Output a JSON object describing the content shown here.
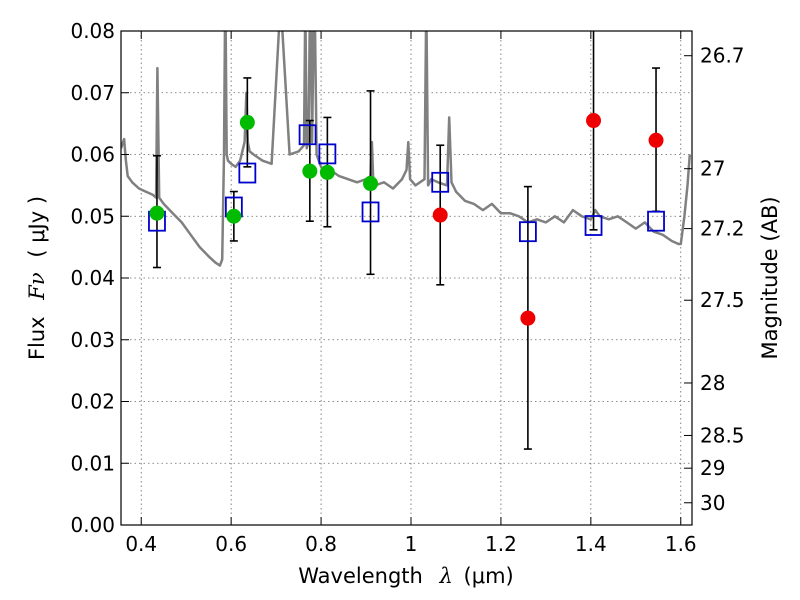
{
  "chart_data": {
    "type": "scatter",
    "title": "",
    "xlabel_text": "Wavelength",
    "xlabel_symbol": "λ",
    "xlabel_unit": "(μm)",
    "ylabel_text": "Flux",
    "ylabel_symbol": "Fν",
    "ylabel_unit": "( μJy )",
    "y2label": "Magnitude (AB)",
    "xlim": [
      0.355,
      1.625
    ],
    "ylim": [
      0.0,
      0.08
    ],
    "grid": true,
    "x_ticks": [
      0.4,
      0.6,
      0.8,
      1.0,
      1.2,
      1.4,
      1.6
    ],
    "x_tick_labels": [
      "0.4",
      "0.6",
      "0.8",
      "1",
      "1.2",
      "1.4",
      "1.6"
    ],
    "y_ticks": [
      0.0,
      0.01,
      0.02,
      0.03,
      0.04,
      0.05,
      0.06,
      0.07,
      0.08
    ],
    "y_tick_labels": [
      "0.00",
      "0.01",
      "0.02",
      "0.03",
      "0.04",
      "0.05",
      "0.06",
      "0.07",
      "0.08"
    ],
    "y2_ticks": [
      {
        "label": "26.7",
        "flux": 0.076
      },
      {
        "label": "27",
        "flux": 0.0577
      },
      {
        "label": "27.2",
        "flux": 0.048
      },
      {
        "label": "27.5",
        "flux": 0.0364
      },
      {
        "label": "28",
        "flux": 0.023
      },
      {
        "label": "28.5",
        "flux": 0.0145
      },
      {
        "label": "29",
        "flux": 0.0092
      },
      {
        "label": "30",
        "flux": 0.0036
      }
    ],
    "series": [
      {
        "marker": "open-square",
        "color": "#0000cc",
        "points": [
          {
            "x": 0.435,
            "y": 0.0492
          },
          {
            "x": 0.606,
            "y": 0.0515
          },
          {
            "x": 0.636,
            "y": 0.057
          },
          {
            "x": 0.77,
            "y": 0.0632
          },
          {
            "x": 0.814,
            "y": 0.0601
          },
          {
            "x": 0.91,
            "y": 0.0507
          },
          {
            "x": 1.065,
            "y": 0.0555
          },
          {
            "x": 1.26,
            "y": 0.0475
          },
          {
            "x": 1.406,
            "y": 0.0485
          },
          {
            "x": 1.545,
            "y": 0.0492
          }
        ]
      },
      {
        "marker": "filled-circle",
        "color": "#00bb00",
        "points": [
          {
            "x": 0.435,
            "y": 0.0505,
            "err_lo": 0.0417,
            "err_hi": 0.0598
          },
          {
            "x": 0.606,
            "y": 0.05,
            "err_lo": 0.046,
            "err_hi": 0.054
          },
          {
            "x": 0.636,
            "y": 0.0652,
            "err_lo": 0.058,
            "err_hi": 0.0724
          },
          {
            "x": 0.775,
            "y": 0.0573,
            "err_lo": 0.0492,
            "err_hi": 0.0655
          },
          {
            "x": 0.814,
            "y": 0.0571,
            "err_lo": 0.0483,
            "err_hi": 0.066
          },
          {
            "x": 0.91,
            "y": 0.0553,
            "err_lo": 0.0406,
            "err_hi": 0.0703
          }
        ]
      },
      {
        "marker": "filled-circle",
        "color": "#ee0000",
        "points": [
          {
            "x": 1.065,
            "y": 0.0502,
            "err_lo": 0.0389,
            "err_hi": 0.0615
          },
          {
            "x": 1.26,
            "y": 0.0335,
            "err_lo": 0.0123,
            "err_hi": 0.0548
          },
          {
            "x": 1.406,
            "y": 0.0655,
            "err_lo": 0.0478,
            "err_hi": 0.083
          },
          {
            "x": 1.545,
            "y": 0.0623,
            "err_lo": 0.0508,
            "err_hi": 0.074
          }
        ]
      }
    ],
    "spectrum": {
      "color": "#808080",
      "x": [
        0.355,
        0.362,
        0.366,
        0.37,
        0.38,
        0.395,
        0.41,
        0.425,
        0.433,
        0.436,
        0.44,
        0.45,
        0.47,
        0.49,
        0.51,
        0.53,
        0.55,
        0.565,
        0.575,
        0.58,
        0.584,
        0.587,
        0.59,
        0.593,
        0.6,
        0.61,
        0.62,
        0.63,
        0.634,
        0.637,
        0.641,
        0.65,
        0.66,
        0.67,
        0.69,
        0.71,
        0.73,
        0.75,
        0.762,
        0.765,
        0.768,
        0.772,
        0.776,
        0.78,
        0.785,
        0.79,
        0.795,
        0.8,
        0.81,
        0.82,
        0.84,
        0.86,
        0.88,
        0.9,
        0.91,
        0.913,
        0.916,
        0.92,
        0.94,
        0.96,
        0.98,
        0.99,
        0.994,
        0.998,
        1.01,
        1.03,
        1.034,
        1.038,
        1.045,
        1.06,
        1.08,
        1.085,
        1.09,
        1.1,
        1.12,
        1.14,
        1.16,
        1.18,
        1.2,
        1.22,
        1.24,
        1.26,
        1.28,
        1.3,
        1.32,
        1.34,
        1.36,
        1.38,
        1.4,
        1.41,
        1.42,
        1.44,
        1.46,
        1.48,
        1.5,
        1.52,
        1.54,
        1.56,
        1.58,
        1.595,
        1.6,
        1.608,
        1.615,
        1.62
      ],
      "y": [
        0.061,
        0.0625,
        0.059,
        0.0565,
        0.0555,
        0.0545,
        0.054,
        0.0535,
        0.053,
        0.074,
        0.053,
        0.052,
        0.0505,
        0.049,
        0.047,
        0.045,
        0.0435,
        0.0425,
        0.042,
        0.043,
        0.06,
        0.088,
        0.06,
        0.059,
        0.0585,
        0.058,
        0.059,
        0.062,
        0.07,
        0.062,
        0.0605,
        0.06,
        0.0595,
        0.059,
        0.0585,
        0.085,
        0.06,
        0.0605,
        0.0615,
        0.085,
        0.061,
        0.062,
        0.09,
        0.062,
        0.09,
        0.06,
        0.059,
        0.058,
        0.057,
        0.0575,
        0.0565,
        0.056,
        0.0555,
        0.056,
        0.0565,
        0.062,
        0.056,
        0.055,
        0.0555,
        0.0545,
        0.056,
        0.0575,
        0.062,
        0.056,
        0.055,
        0.056,
        0.085,
        0.055,
        0.056,
        0.0555,
        0.055,
        0.066,
        0.0555,
        0.054,
        0.0525,
        0.052,
        0.051,
        0.052,
        0.0505,
        0.0505,
        0.05,
        0.049,
        0.0495,
        0.049,
        0.05,
        0.049,
        0.051,
        0.05,
        0.0495,
        0.051,
        0.05,
        0.0495,
        0.05,
        0.049,
        0.048,
        0.049,
        0.0475,
        0.047,
        0.046,
        0.0455,
        0.0455,
        0.05,
        0.055,
        0.06
      ]
    }
  }
}
